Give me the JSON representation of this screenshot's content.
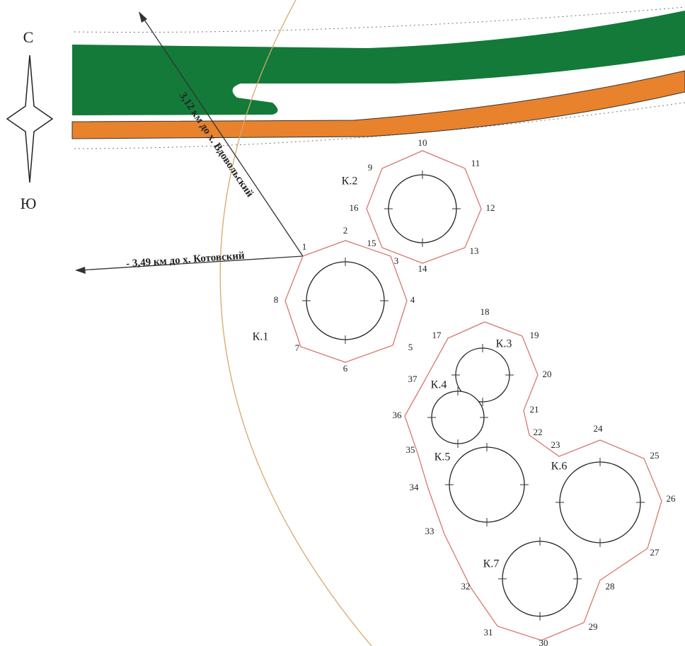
{
  "compass": {
    "north": "С",
    "south": "Ю"
  },
  "directions": [
    {
      "label": "- 3,49 км до х. Котовский"
    },
    {
      "label": "3,12 км до х. Вдовольский"
    }
  ],
  "contours": [
    {
      "label": "К.1"
    },
    {
      "label": "К.2"
    },
    {
      "label": "К.3"
    },
    {
      "label": "К.4"
    },
    {
      "label": "К.5"
    },
    {
      "label": "К.6"
    },
    {
      "label": "К.7"
    }
  ],
  "points": [
    "1",
    "2",
    "3",
    "4",
    "5",
    "6",
    "7",
    "8",
    "9",
    "10",
    "11",
    "12",
    "13",
    "14",
    "15",
    "16",
    "17",
    "18",
    "19",
    "20",
    "21",
    "22",
    "23",
    "24",
    "25",
    "26",
    "27",
    "28",
    "29",
    "30",
    "31",
    "32",
    "33",
    "34",
    "35",
    "36",
    "37"
  ]
}
